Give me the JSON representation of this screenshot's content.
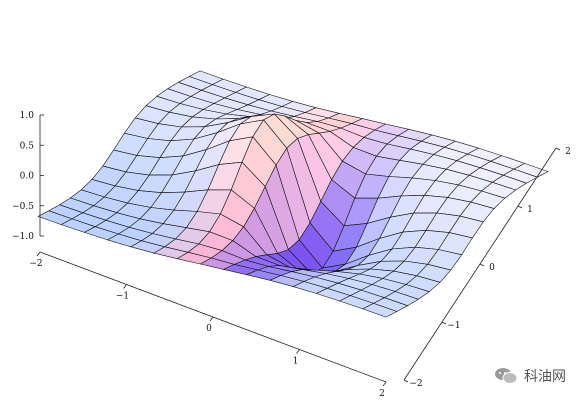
{
  "chart_data": {
    "type": "surface3d",
    "title": "",
    "xlabel": "",
    "ylabel": "",
    "zlabel": "",
    "x_range": [
      -2,
      2
    ],
    "y_range": [
      -2,
      2
    ],
    "z_range": [
      -1,
      1
    ],
    "x_ticks": [
      "−2",
      "−1",
      "0",
      "1",
      "2"
    ],
    "y_ticks": [
      "−2",
      "−1",
      "0",
      "1",
      "2"
    ],
    "z_ticks": [
      "1.0",
      "0.5",
      "0.0",
      "−0.5",
      "−1.0"
    ],
    "surface": "vortex-like saddle: high plateau on the far side, sharp ridge/trough near x = 0, deep basin on the near side",
    "grid_lines_per_axis": 15,
    "box": false,
    "colors": {
      "mesh": "#111111",
      "high": "#b8d4ff",
      "warm": "#ffbfa0",
      "mid": "#fff0f5",
      "purple": "#8a3ad0",
      "low": "#4a55d8"
    }
  },
  "watermark": {
    "icon": "wechat-bubble-icon",
    "label": "科油网"
  }
}
